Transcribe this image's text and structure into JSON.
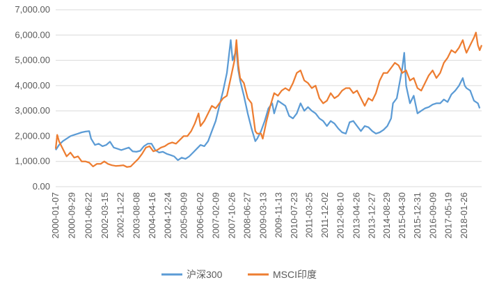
{
  "chart_data": {
    "type": "line",
    "y_ticks": [
      "0.00",
      "1,000.00",
      "2,000.00",
      "3,000.00",
      "4,000.00",
      "5,000.00",
      "6,000.00",
      "7,000.00"
    ],
    "ylim": [
      0,
      7000
    ],
    "x_ticks": [
      "2000-01-07",
      "2000-09-29",
      "2001-06-22",
      "2002-03-15",
      "2002-11-22",
      "2003-08-08",
      "2004-04-16",
      "2004-12-24",
      "2005-09-09",
      "2006-06-02",
      "2007-02-09",
      "2007-10-26",
      "2008-06-27",
      "2009-03-13",
      "2009-11-13",
      "2010-07-23",
      "2011-03-25",
      "2011-12-02",
      "2012-08-10",
      "2013-04-26",
      "2013-12-27",
      "2014-08-29",
      "2015-04-30",
      "2015-12-31",
      "2016-09-09",
      "2017-05-19",
      "2018-01-26"
    ],
    "legend_position": "bottom",
    "grid": "horizontal",
    "series": [
      {
        "name": "沪深300",
        "color": "#5b9bd5",
        "points": [
          [
            "2000-01-07",
            1450
          ],
          [
            "2000-03-01",
            1650
          ],
          [
            "2000-05-01",
            1800
          ],
          [
            "2000-07-01",
            1900
          ],
          [
            "2000-09-01",
            2000
          ],
          [
            "2000-11-01",
            2050
          ],
          [
            "2001-01-01",
            2100
          ],
          [
            "2001-03-01",
            2150
          ],
          [
            "2001-05-01",
            2180
          ],
          [
            "2001-07-01",
            2200
          ],
          [
            "2001-08-01",
            1900
          ],
          [
            "2001-10-01",
            1650
          ],
          [
            "2001-12-01",
            1700
          ],
          [
            "2002-02-01",
            1600
          ],
          [
            "2002-04-01",
            1650
          ],
          [
            "2002-06-01",
            1780
          ],
          [
            "2002-08-01",
            1550
          ],
          [
            "2002-10-01",
            1500
          ],
          [
            "2002-12-01",
            1450
          ],
          [
            "2003-02-01",
            1500
          ],
          [
            "2003-04-01",
            1550
          ],
          [
            "2003-06-01",
            1400
          ],
          [
            "2003-08-01",
            1380
          ],
          [
            "2003-10-01",
            1420
          ],
          [
            "2003-12-01",
            1600
          ],
          [
            "2004-02-01",
            1700
          ],
          [
            "2004-04-01",
            1700
          ],
          [
            "2004-06-01",
            1450
          ],
          [
            "2004-08-01",
            1350
          ],
          [
            "2004-10-01",
            1380
          ],
          [
            "2004-12-01",
            1300
          ],
          [
            "2005-02-01",
            1250
          ],
          [
            "2005-04-01",
            1200
          ],
          [
            "2005-06-01",
            1050
          ],
          [
            "2005-08-01",
            1150
          ],
          [
            "2005-10-01",
            1100
          ],
          [
            "2005-12-01",
            1200
          ],
          [
            "2006-02-01",
            1350
          ],
          [
            "2006-04-01",
            1500
          ],
          [
            "2006-06-01",
            1650
          ],
          [
            "2006-08-01",
            1600
          ],
          [
            "2006-10-01",
            1800
          ],
          [
            "2006-12-01",
            2200
          ],
          [
            "2007-02-01",
            2600
          ],
          [
            "2007-04-01",
            3200
          ],
          [
            "2007-06-01",
            3800
          ],
          [
            "2007-08-01",
            4500
          ],
          [
            "2007-10-01",
            5800
          ],
          [
            "2007-11-01",
            5000
          ],
          [
            "2007-12-01",
            5200
          ],
          [
            "2008-01-01",
            5400
          ],
          [
            "2008-02-01",
            4600
          ],
          [
            "2008-03-01",
            4200
          ],
          [
            "2008-05-01",
            3600
          ],
          [
            "2008-07-01",
            2900
          ],
          [
            "2008-09-01",
            2300
          ],
          [
            "2008-11-01",
            1800
          ],
          [
            "2008-12-01",
            1900
          ],
          [
            "2009-02-01",
            2200
          ],
          [
            "2009-04-01",
            2600
          ],
          [
            "2009-06-01",
            3100
          ],
          [
            "2009-08-01",
            3300
          ],
          [
            "2009-09-01",
            2900
          ],
          [
            "2009-11-01",
            3400
          ],
          [
            "2010-01-01",
            3300
          ],
          [
            "2010-03-01",
            3200
          ],
          [
            "2010-05-01",
            2800
          ],
          [
            "2010-07-01",
            2700
          ],
          [
            "2010-09-01",
            2900
          ],
          [
            "2010-11-01",
            3300
          ],
          [
            "2011-01-01",
            3000
          ],
          [
            "2011-03-01",
            3150
          ],
          [
            "2011-05-01",
            3000
          ],
          [
            "2011-07-01",
            2900
          ],
          [
            "2011-09-01",
            2700
          ],
          [
            "2011-11-01",
            2600
          ],
          [
            "2012-01-01",
            2400
          ],
          [
            "2012-03-01",
            2600
          ],
          [
            "2012-05-01",
            2500
          ],
          [
            "2012-07-01",
            2300
          ],
          [
            "2012-09-01",
            2150
          ],
          [
            "2012-11-01",
            2100
          ],
          [
            "2013-01-01",
            2550
          ],
          [
            "2013-03-01",
            2600
          ],
          [
            "2013-05-01",
            2400
          ],
          [
            "2013-07-01",
            2200
          ],
          [
            "2013-09-01",
            2400
          ],
          [
            "2013-11-01",
            2350
          ],
          [
            "2014-01-01",
            2200
          ],
          [
            "2014-03-01",
            2100
          ],
          [
            "2014-05-01",
            2150
          ],
          [
            "2014-07-01",
            2250
          ],
          [
            "2014-09-01",
            2400
          ],
          [
            "2014-11-01",
            2700
          ],
          [
            "2014-12-01",
            3300
          ],
          [
            "2015-02-01",
            3500
          ],
          [
            "2015-04-01",
            4300
          ],
          [
            "2015-05-01",
            4700
          ],
          [
            "2015-06-01",
            5300
          ],
          [
            "2015-07-01",
            4000
          ],
          [
            "2015-09-01",
            3300
          ],
          [
            "2015-11-01",
            3600
          ],
          [
            "2016-01-01",
            2900
          ],
          [
            "2016-03-01",
            3000
          ],
          [
            "2016-05-01",
            3100
          ],
          [
            "2016-07-01",
            3150
          ],
          [
            "2016-09-01",
            3250
          ],
          [
            "2016-11-01",
            3300
          ],
          [
            "2017-01-01",
            3300
          ],
          [
            "2017-03-01",
            3450
          ],
          [
            "2017-05-01",
            3350
          ],
          [
            "2017-07-01",
            3650
          ],
          [
            "2017-09-01",
            3800
          ],
          [
            "2017-11-01",
            4000
          ],
          [
            "2018-01-01",
            4300
          ],
          [
            "2018-02-01",
            4000
          ],
          [
            "2018-03-01",
            3900
          ],
          [
            "2018-05-01",
            3800
          ],
          [
            "2018-07-01",
            3400
          ],
          [
            "2018-09-01",
            3300
          ],
          [
            "2018-10-01",
            3100
          ]
        ]
      },
      {
        "name": "MSCI印度",
        "color": "#ed7d31",
        "points": [
          [
            "2000-01-07",
            1500
          ],
          [
            "2000-02-01",
            2050
          ],
          [
            "2000-03-01",
            1800
          ],
          [
            "2000-05-01",
            1500
          ],
          [
            "2000-07-01",
            1200
          ],
          [
            "2000-09-01",
            1350
          ],
          [
            "2000-11-01",
            1150
          ],
          [
            "2001-01-01",
            1200
          ],
          [
            "2001-03-01",
            1000
          ],
          [
            "2001-05-01",
            1000
          ],
          [
            "2001-07-01",
            950
          ],
          [
            "2001-09-01",
            800
          ],
          [
            "2001-11-01",
            900
          ],
          [
            "2002-01-01",
            900
          ],
          [
            "2002-03-01",
            1000
          ],
          [
            "2002-05-01",
            900
          ],
          [
            "2002-07-01",
            850
          ],
          [
            "2002-09-01",
            820
          ],
          [
            "2002-11-01",
            830
          ],
          [
            "2003-01-01",
            850
          ],
          [
            "2003-03-01",
            780
          ],
          [
            "2003-05-01",
            800
          ],
          [
            "2003-07-01",
            950
          ],
          [
            "2003-09-01",
            1100
          ],
          [
            "2003-11-01",
            1300
          ],
          [
            "2004-01-01",
            1550
          ],
          [
            "2004-03-01",
            1600
          ],
          [
            "2004-05-01",
            1400
          ],
          [
            "2004-07-01",
            1450
          ],
          [
            "2004-09-01",
            1550
          ],
          [
            "2004-11-01",
            1600
          ],
          [
            "2005-01-01",
            1700
          ],
          [
            "2005-03-01",
            1750
          ],
          [
            "2005-05-01",
            1700
          ],
          [
            "2005-07-01",
            1850
          ],
          [
            "2005-09-01",
            2000
          ],
          [
            "2005-11-01",
            2000
          ],
          [
            "2006-01-01",
            2200
          ],
          [
            "2006-03-01",
            2500
          ],
          [
            "2006-05-01",
            2900
          ],
          [
            "2006-06-01",
            2400
          ],
          [
            "2006-08-01",
            2600
          ],
          [
            "2006-10-01",
            2900
          ],
          [
            "2006-12-01",
            3200
          ],
          [
            "2007-02-01",
            3100
          ],
          [
            "2007-04-01",
            3300
          ],
          [
            "2007-06-01",
            3500
          ],
          [
            "2007-08-01",
            3600
          ],
          [
            "2007-10-01",
            4300
          ],
          [
            "2007-12-01",
            5000
          ],
          [
            "2008-01-01",
            5800
          ],
          [
            "2008-02-01",
            4800
          ],
          [
            "2008-03-01",
            4300
          ],
          [
            "2008-05-01",
            4100
          ],
          [
            "2008-07-01",
            3500
          ],
          [
            "2008-09-01",
            3300
          ],
          [
            "2008-11-01",
            2200
          ],
          [
            "2008-12-01",
            2100
          ],
          [
            "2009-02-01",
            2100
          ],
          [
            "2009-03-01",
            1900
          ],
          [
            "2009-05-01",
            2600
          ],
          [
            "2009-07-01",
            3200
          ],
          [
            "2009-09-01",
            3700
          ],
          [
            "2009-11-01",
            3600
          ],
          [
            "2010-01-01",
            3800
          ],
          [
            "2010-03-01",
            3900
          ],
          [
            "2010-05-01",
            3800
          ],
          [
            "2010-07-01",
            4100
          ],
          [
            "2010-09-01",
            4500
          ],
          [
            "2010-11-01",
            4600
          ],
          [
            "2011-01-01",
            4200
          ],
          [
            "2011-03-01",
            4100
          ],
          [
            "2011-05-01",
            3900
          ],
          [
            "2011-07-01",
            4000
          ],
          [
            "2011-09-01",
            3500
          ],
          [
            "2011-11-01",
            3300
          ],
          [
            "2012-01-01",
            3400
          ],
          [
            "2012-03-01",
            3700
          ],
          [
            "2012-05-01",
            3500
          ],
          [
            "2012-07-01",
            3600
          ],
          [
            "2012-09-01",
            3800
          ],
          [
            "2012-11-01",
            3900
          ],
          [
            "2013-01-01",
            3900
          ],
          [
            "2013-03-01",
            3700
          ],
          [
            "2013-05-01",
            3800
          ],
          [
            "2013-07-01",
            3500
          ],
          [
            "2013-09-01",
            3200
          ],
          [
            "2013-11-01",
            3500
          ],
          [
            "2014-01-01",
            3400
          ],
          [
            "2014-03-01",
            3700
          ],
          [
            "2014-05-01",
            4200
          ],
          [
            "2014-07-01",
            4500
          ],
          [
            "2014-09-01",
            4500
          ],
          [
            "2014-11-01",
            4700
          ],
          [
            "2015-01-01",
            4900
          ],
          [
            "2015-03-01",
            4800
          ],
          [
            "2015-05-01",
            4500
          ],
          [
            "2015-07-01",
            4600
          ],
          [
            "2015-09-01",
            4200
          ],
          [
            "2015-11-01",
            4300
          ],
          [
            "2016-01-01",
            3900
          ],
          [
            "2016-03-01",
            3800
          ],
          [
            "2016-05-01",
            4100
          ],
          [
            "2016-07-01",
            4400
          ],
          [
            "2016-09-01",
            4600
          ],
          [
            "2016-11-01",
            4300
          ],
          [
            "2017-01-01",
            4500
          ],
          [
            "2017-03-01",
            4900
          ],
          [
            "2017-05-01",
            5100
          ],
          [
            "2017-07-01",
            5400
          ],
          [
            "2017-09-01",
            5300
          ],
          [
            "2017-11-01",
            5500
          ],
          [
            "2018-01-01",
            5800
          ],
          [
            "2018-02-01",
            5500
          ],
          [
            "2018-03-01",
            5300
          ],
          [
            "2018-05-01",
            5600
          ],
          [
            "2018-07-01",
            5900
          ],
          [
            "2018-08-01",
            6100
          ],
          [
            "2018-09-01",
            5600
          ],
          [
            "2018-10-01",
            5400
          ],
          [
            "2018-11-01",
            5600
          ]
        ]
      }
    ]
  }
}
